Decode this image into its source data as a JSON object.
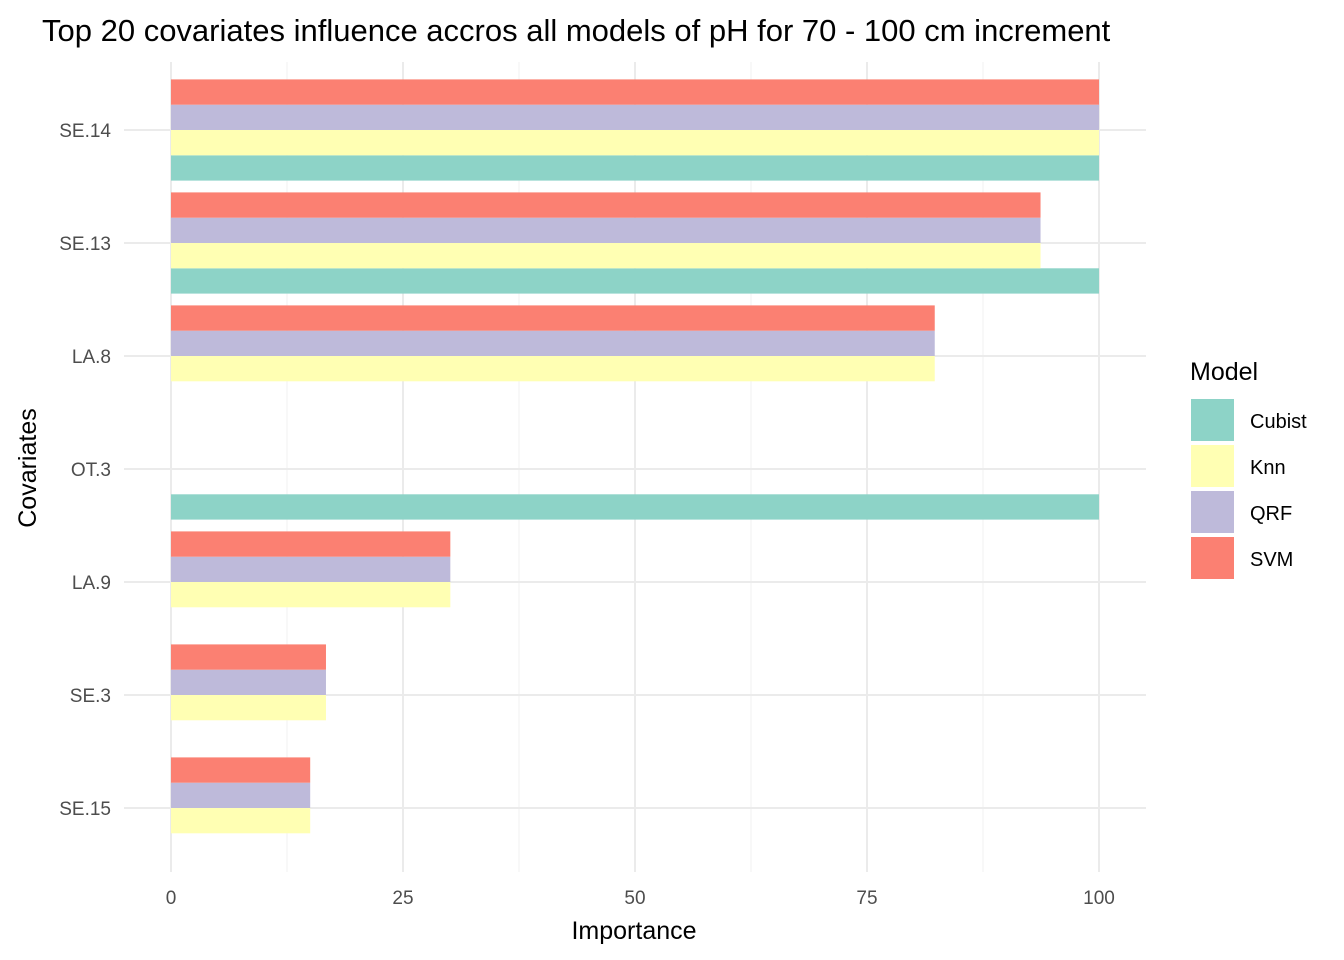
{
  "chart_data": {
    "type": "bar",
    "orientation": "horizontal",
    "title": "Top 20 covariates influence accros all models of pH for 70 - 100 cm increment",
    "xlabel": "Importance",
    "ylabel": "Covariates",
    "xlim": [
      0,
      100
    ],
    "xticks": [
      "0",
      "25",
      "50",
      "75",
      "100"
    ],
    "categories": [
      "SE.14",
      "SE.13",
      "LA.8",
      "OT.3",
      "LA.9",
      "SE.3",
      "SE.15"
    ],
    "legend_title": "Model",
    "legend_position": "right",
    "grid": true,
    "series": [
      {
        "name": "Cubist",
        "color": "#8DD3C7",
        "values": [
          100,
          100,
          null,
          100,
          null,
          null,
          null
        ]
      },
      {
        "name": "Knn",
        "color": "#FFFFB3",
        "values": [
          100,
          93.7,
          82.3,
          null,
          30.1,
          16.7,
          15.0
        ]
      },
      {
        "name": "QRF",
        "color": "#BEBADA",
        "values": [
          100,
          93.7,
          82.3,
          null,
          30.1,
          16.7,
          15.0
        ]
      },
      {
        "name": "SVM",
        "color": "#FB8072",
        "values": [
          100,
          93.7,
          82.3,
          null,
          30.1,
          16.7,
          15.0
        ]
      }
    ]
  }
}
